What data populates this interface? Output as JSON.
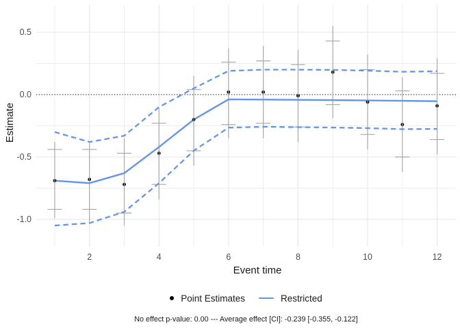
{
  "axes": {
    "xlabel": "Event time",
    "ylabel": "Estimate"
  },
  "legend": {
    "items": [
      {
        "label": "Point Estimates",
        "marker": "dot"
      },
      {
        "label": "Restricted",
        "marker": "line"
      }
    ]
  },
  "caption": "No effect p-value: 0.00 --- Average effect [CI]: -0.239 [-0.355, -0.122]",
  "colors": {
    "restricted_blue": "#6495ED",
    "errorbar_gray": "#a6a6a6",
    "point_black": "#000000",
    "grid_major": "#e4e4e4",
    "grid_minor": "#eeeeee",
    "tick_label": "#4d4d4d",
    "zero_line": "#000000"
  },
  "chart_data": {
    "type": "scatter",
    "title": "",
    "xlabel": "Event time",
    "ylabel": "Estimate",
    "xlim": [
      0.47,
      12.54
    ],
    "ylim": [
      -1.22,
      0.72
    ],
    "x_ticks": [
      2,
      4,
      6,
      8,
      10,
      12
    ],
    "x_minor_ticks": [
      1,
      3,
      5,
      7,
      9,
      11
    ],
    "y_ticks": [
      0.5,
      0.0,
      -0.5,
      -1.0
    ],
    "y_minor_ticks": [
      0.25,
      -0.25,
      -0.75
    ],
    "zero_line_y": 0,
    "grid": true,
    "legend_position": "bottom",
    "x": [
      1,
      2,
      3,
      4,
      5,
      6,
      7,
      8,
      9,
      10,
      11,
      12
    ],
    "series": [
      {
        "name": "Point Estimates",
        "type": "scatter_with_errorbars",
        "y": [
          -0.69,
          -0.68,
          -0.72,
          -0.47,
          -0.2,
          0.02,
          0.02,
          -0.01,
          0.18,
          -0.06,
          -0.24,
          -0.09
        ],
        "ci_upper": [
          -0.44,
          -0.44,
          -0.47,
          -0.23,
          0.04,
          0.26,
          0.27,
          0.24,
          0.43,
          0.2,
          0.03,
          0.17
        ],
        "ci_lower": [
          -0.92,
          -0.92,
          -0.95,
          -0.72,
          -0.45,
          -0.24,
          -0.23,
          -0.26,
          -0.08,
          -0.32,
          -0.5,
          -0.36
        ],
        "band_upper": [
          -0.38,
          -0.39,
          -0.35,
          -0.11,
          0.15,
          0.37,
          0.39,
          0.36,
          0.55,
          0.32,
          0.14,
          0.29
        ],
        "band_lower": [
          -0.99,
          -1.02,
          -1.05,
          -0.84,
          -0.57,
          -0.35,
          -0.35,
          -0.38,
          -0.19,
          -0.44,
          -0.62,
          -0.48
        ]
      },
      {
        "name": "Restricted",
        "type": "line_with_dashed_ci",
        "y": [
          -0.69,
          -0.71,
          -0.63,
          -0.42,
          -0.2,
          -0.038,
          -0.04,
          -0.042,
          -0.044,
          -0.047,
          -0.05,
          -0.053
        ],
        "upper": [
          -0.3,
          -0.38,
          -0.33,
          -0.1,
          0.05,
          0.19,
          0.2,
          0.2,
          0.198,
          0.192,
          0.183,
          0.187
        ],
        "lower": [
          -1.05,
          -1.03,
          -0.94,
          -0.71,
          -0.45,
          -0.265,
          -0.258,
          -0.261,
          -0.264,
          -0.269,
          -0.277,
          -0.275
        ]
      }
    ],
    "stats": {
      "no_effect_p_value": "0.00",
      "average_effect": "-0.239",
      "average_effect_ci": "[-0.355, -0.122]"
    }
  }
}
